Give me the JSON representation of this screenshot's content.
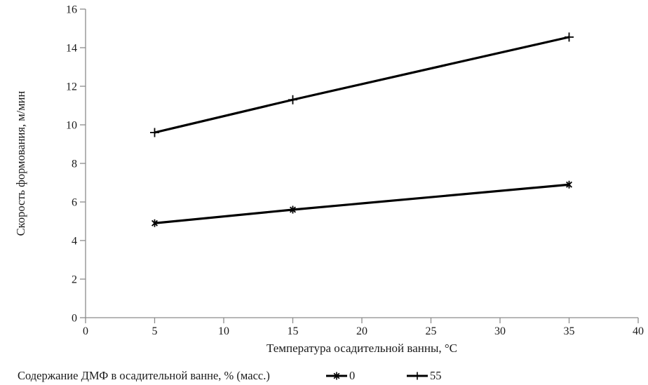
{
  "chart_data": {
    "type": "line",
    "xlabel": "Температура осадительной ванны, °C",
    "ylabel": "Скорость формования, м/мин",
    "legend_title": "Содержание ДМФ в осадительной ванне, % (масс.)",
    "legend_position": "bottom",
    "grid": false,
    "xlim": [
      0,
      40
    ],
    "ylim": [
      0,
      16
    ],
    "xticks": [
      0,
      5,
      10,
      15,
      20,
      25,
      30,
      35,
      40
    ],
    "yticks": [
      0,
      2,
      4,
      6,
      8,
      10,
      12,
      14,
      16
    ],
    "x": [
      5,
      15,
      35
    ],
    "series": [
      {
        "name": "0",
        "marker": "asterisk",
        "values": [
          4.9,
          5.6,
          6.9
        ]
      },
      {
        "name": "55",
        "marker": "plus",
        "values": [
          9.6,
          11.3,
          14.55
        ]
      }
    ],
    "line_color": "#000000",
    "axis_color": "#8c8c8c",
    "text_color": "#1a1a1a"
  }
}
